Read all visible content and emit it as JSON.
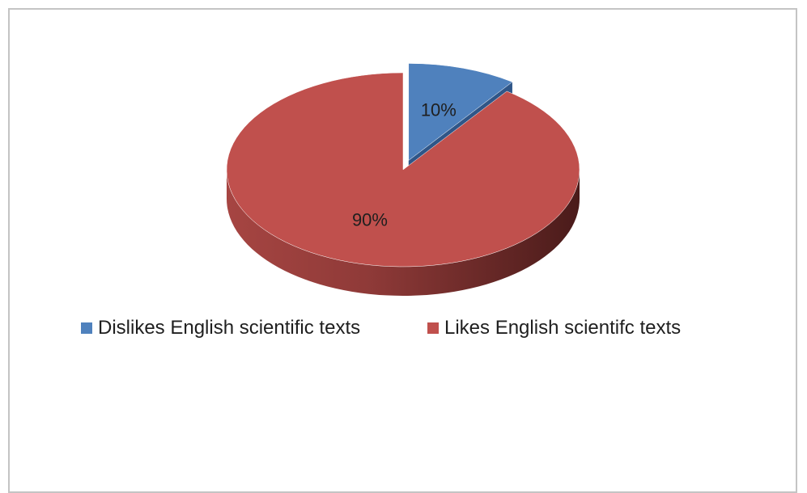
{
  "chart_data": {
    "type": "pie",
    "style": "3d-exploded",
    "title": "",
    "series": [
      {
        "labels": [
          "Dislikes English scientific texts",
          "Likes English scientifc texts"
        ],
        "values": [
          10,
          90
        ],
        "data_labels": [
          "10%",
          "90%"
        ],
        "colors": [
          "#4f81bd",
          "#c0504d"
        ]
      }
    ],
    "legend": {
      "position": "bottom",
      "entries": [
        "Dislikes English scientific texts",
        "Likes English scientifc texts"
      ]
    }
  }
}
